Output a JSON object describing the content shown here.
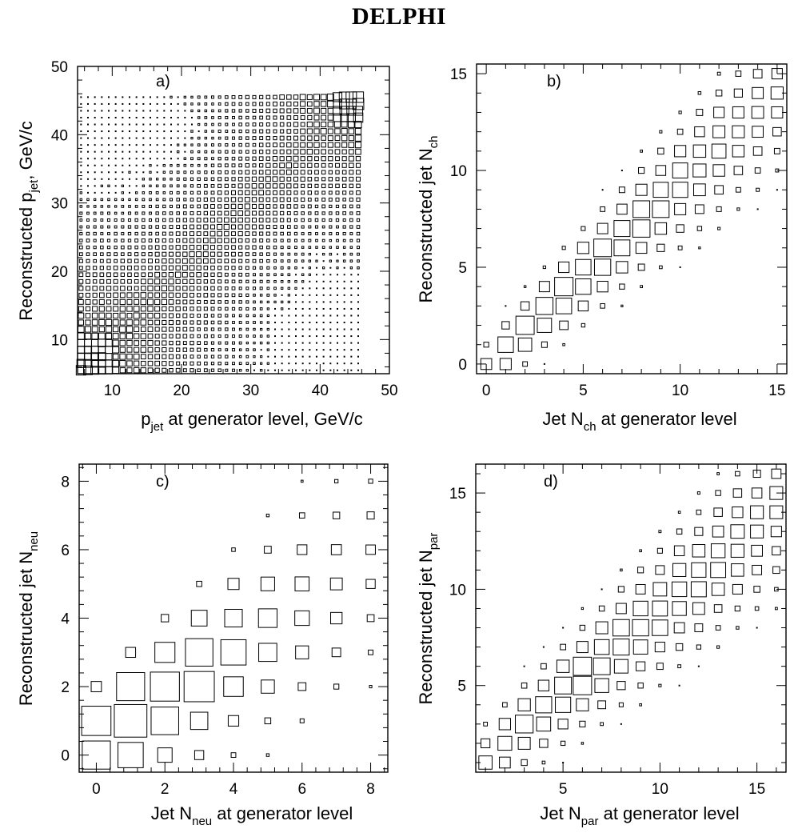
{
  "title": "DELPHI",
  "chart_data": [
    {
      "type": "heatmap",
      "panel_label": "a)",
      "xlabel": {
        "main": "p",
        "sub": "jet",
        "rest": " at generator level, GeV/c"
      },
      "ylabel": {
        "main": "Reconstructed p",
        "sub": "jet",
        "rest": ", GeV/c"
      },
      "xlim": [
        5,
        50
      ],
      "ylim": [
        5,
        50
      ],
      "x_ticks": [
        10,
        20,
        30,
        40,
        50
      ],
      "y_ticks": [
        10,
        20,
        30,
        40,
        50
      ],
      "bins": {
        "start": 5.5,
        "end": 45.5,
        "step": 1
      },
      "note": "Box area proportional to entries; strong diagonal band peaking at both ends (low p and high p near 44-45 GeV/c)."
    },
    {
      "type": "heatmap",
      "panel_label": "b)",
      "xlabel": {
        "main": "Jet N",
        "sub": "ch",
        "rest": " at generator level"
      },
      "ylabel": {
        "main": "Reconstructed jet N",
        "sub": "ch",
        "rest": ""
      },
      "xlim": [
        -0.5,
        15.5
      ],
      "ylim": [
        -0.5,
        15.5
      ],
      "x_ticks": [
        0,
        5,
        10,
        15
      ],
      "y_ticks": [
        0,
        5,
        10,
        15
      ],
      "bins": {
        "start": 0,
        "end": 15,
        "step": 1
      },
      "peak": 4,
      "note": "Diagonal-dominated migration matrix; largest boxes around N_ch = 3-9."
    },
    {
      "type": "heatmap",
      "panel_label": "c)",
      "xlabel": {
        "main": "Jet N",
        "sub": "neu",
        "rest": " at generator level"
      },
      "ylabel": {
        "main": "Reconstructed jet N",
        "sub": "neu",
        "rest": ""
      },
      "xlim": [
        -0.5,
        8.5
      ],
      "ylim": [
        -0.5,
        8.5
      ],
      "x_ticks": [
        0,
        2,
        4,
        6,
        8
      ],
      "y_ticks": [
        0,
        2,
        4,
        6,
        8
      ],
      "bins": {
        "start": 0,
        "end": 8,
        "step": 1
      },
      "note": "Reconstructed N_neu systematically lower than generated; largest box at (1,1)."
    },
    {
      "type": "heatmap",
      "panel_label": "d)",
      "xlabel": {
        "main": "Jet N",
        "sub": "par",
        "rest": " at generator level"
      },
      "ylabel": {
        "main": "Reconstructed jet N",
        "sub": "par",
        "rest": ""
      },
      "xlim": [
        0.5,
        16.5
      ],
      "ylim": [
        0.5,
        16.5
      ],
      "x_ticks": [
        5,
        10,
        15
      ],
      "y_ticks": [
        5,
        10,
        15
      ],
      "bins": {
        "start": 1,
        "end": 16,
        "step": 1
      },
      "peak": 6,
      "note": "Diagonal band with reconstructed slightly below generated at high N_par."
    }
  ]
}
